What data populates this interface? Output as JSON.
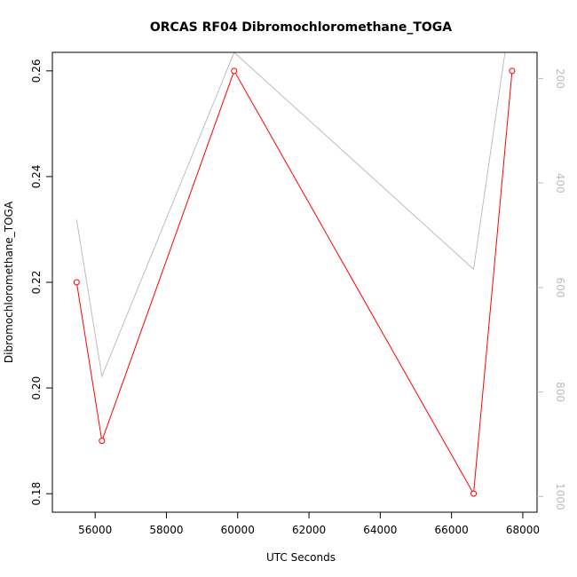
{
  "chart_data": {
    "type": "line",
    "title": "ORCAS RF04 Dibromochloromethane_TOGA",
    "xlabel": "UTC Seconds",
    "ylabel": "Dibromochloromethane_TOGA",
    "xlim": [
      54800,
      68400
    ],
    "ylim": [
      0.1765,
      0.2635
    ],
    "x_ticks": [
      56000,
      58000,
      60000,
      62000,
      64000,
      66000,
      68000
    ],
    "y_ticks": [
      0.18,
      0.2,
      0.22,
      0.24,
      0.26
    ],
    "y2_ticks": [
      200,
      400,
      600,
      800,
      1000
    ],
    "y2lim": [
      1030,
      150
    ],
    "series": [
      {
        "color": "#ff0000",
        "marker": "open-circle",
        "points": [
          {
            "x": 55480,
            "y": 0.22
          },
          {
            "x": 56190,
            "y": 0.19
          },
          {
            "x": 59900,
            "y": 0.26
          },
          {
            "x": 66620,
            "y": 0.18
          },
          {
            "x": 67700,
            "y": 0.26
          }
        ]
      },
      {
        "color": "#bdbdbd",
        "axis": "right",
        "points": [
          {
            "x": 55480,
            "y": 470
          },
          {
            "x": 56190,
            "y": 770
          },
          {
            "x": 59900,
            "y": 150
          },
          {
            "x": 66620,
            "y": 565
          },
          {
            "x": 67500,
            "y": 150
          }
        ]
      }
    ]
  }
}
